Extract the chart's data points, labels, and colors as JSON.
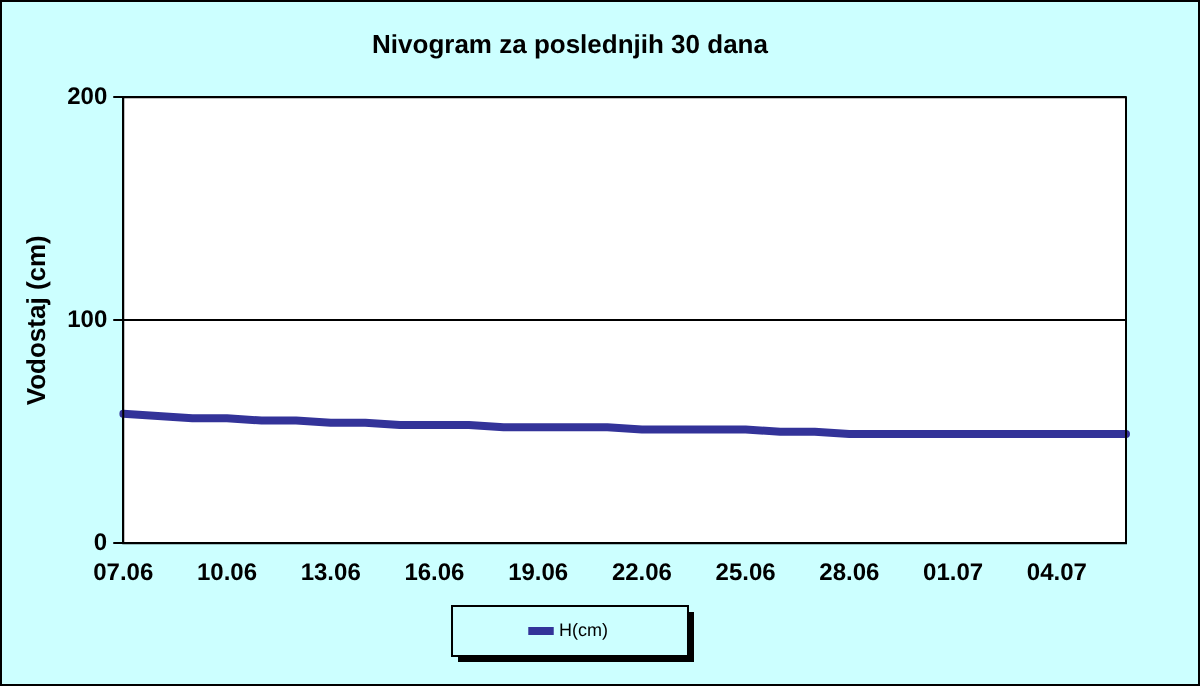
{
  "chart_data": {
    "type": "line",
    "title": "Nivogram za poslednjih 30 dana",
    "ylabel": "Vodostaj (cm)",
    "categories": [
      "07.06",
      null,
      null,
      "10.06",
      null,
      null,
      "13.06",
      null,
      null,
      "16.06",
      null,
      null,
      "19.06",
      null,
      null,
      "22.06",
      null,
      null,
      "25.06",
      null,
      null,
      "28.06",
      null,
      null,
      "01.07",
      null,
      null,
      "04.07",
      null,
      null
    ],
    "series": [
      {
        "name": "H(cm)",
        "color": "#333399",
        "values": [
          58,
          57,
          56,
          56,
          55,
          55,
          54,
          54,
          53,
          53,
          53,
          52,
          52,
          52,
          52,
          51,
          51,
          51,
          51,
          50,
          50,
          49,
          49,
          49,
          49,
          49,
          49,
          49,
          49,
          49
        ]
      }
    ],
    "ylim": [
      0,
      200
    ],
    "yticks": [
      0,
      100,
      200
    ],
    "grid": "y",
    "legend": "bottom",
    "marker": "none",
    "line_style": "solid"
  }
}
